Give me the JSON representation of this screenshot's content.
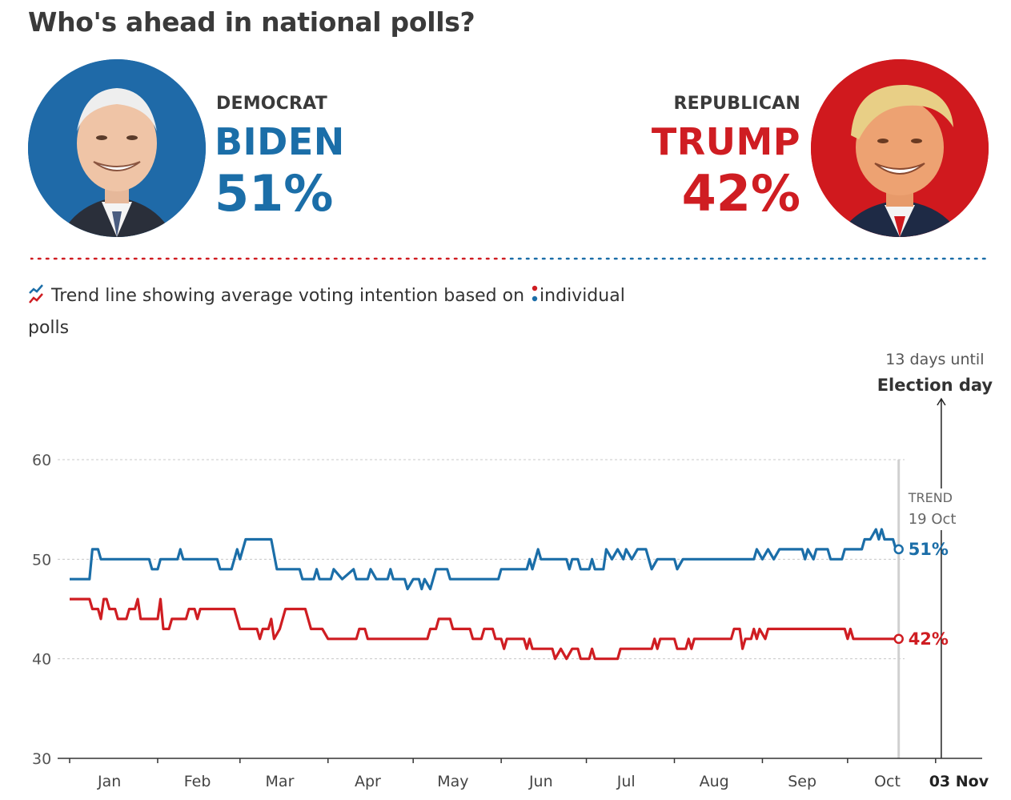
{
  "title": "Who's ahead in national polls?",
  "democrat": {
    "party": "DEMOCRAT",
    "name": "BIDEN",
    "percent": "51%",
    "color": "#1b6ea8",
    "portrait_icon": "biden-portrait"
  },
  "republican": {
    "party": "REPUBLICAN",
    "name": "TRUMP",
    "percent": "42%",
    "color": "#cf1d22",
    "portrait_icon": "trump-portrait"
  },
  "legend": {
    "trend_icon": "trend-line-icon",
    "text_before": "Trend line showing average voting intention based on",
    "poll_icon": "poll-dots-icon",
    "text_after": "individual polls"
  },
  "annotation": {
    "days_text": "13 days until",
    "election_label": "Election day",
    "trend_label": "TREND",
    "trend_date": "19 Oct"
  },
  "chart_data": {
    "type": "line",
    "title": "",
    "xlabel": "",
    "ylabel": "",
    "ylim": [
      30,
      60
    ],
    "yticks": [
      30,
      40,
      50,
      60
    ],
    "grid": true,
    "month_labels": [
      "Jan",
      "Feb",
      "Mar",
      "Apr",
      "May",
      "Jun",
      "Jul",
      "Aug",
      "Sep",
      "Oct"
    ],
    "election_day_label": "03 Nov",
    "x_range": [
      "2020-01-01",
      "2020-11-05"
    ],
    "trend_date": "2020-10-19",
    "election_date": "2020-11-03",
    "series": [
      {
        "name": "BIDEN",
        "color": "#1b6ea8",
        "end_label": "51%",
        "points": [
          [
            "2020-01-01",
            48
          ],
          [
            "2020-01-08",
            48
          ],
          [
            "2020-01-09",
            51
          ],
          [
            "2020-01-11",
            51
          ],
          [
            "2020-01-12",
            50
          ],
          [
            "2020-01-29",
            50
          ],
          [
            "2020-01-30",
            49
          ],
          [
            "2020-02-01",
            49
          ],
          [
            "2020-02-02",
            50
          ],
          [
            "2020-02-08",
            50
          ],
          [
            "2020-02-09",
            51
          ],
          [
            "2020-02-10",
            50
          ],
          [
            "2020-02-22",
            50
          ],
          [
            "2020-02-23",
            49
          ],
          [
            "2020-02-27",
            49
          ],
          [
            "2020-02-29",
            51
          ],
          [
            "2020-03-01",
            50
          ],
          [
            "2020-03-03",
            52
          ],
          [
            "2020-03-12",
            52
          ],
          [
            "2020-03-14",
            49
          ],
          [
            "2020-03-22",
            49
          ],
          [
            "2020-03-23",
            48
          ],
          [
            "2020-03-27",
            48
          ],
          [
            "2020-03-28",
            49
          ],
          [
            "2020-03-29",
            48
          ],
          [
            "2020-04-02",
            48
          ],
          [
            "2020-04-03",
            49
          ],
          [
            "2020-04-06",
            48
          ],
          [
            "2020-04-10",
            49
          ],
          [
            "2020-04-11",
            48
          ],
          [
            "2020-04-15",
            48
          ],
          [
            "2020-04-16",
            49
          ],
          [
            "2020-04-18",
            48
          ],
          [
            "2020-04-22",
            48
          ],
          [
            "2020-04-23",
            49
          ],
          [
            "2020-04-24",
            48
          ],
          [
            "2020-04-28",
            48
          ],
          [
            "2020-04-29",
            47
          ],
          [
            "2020-05-01",
            48
          ],
          [
            "2020-05-03",
            48
          ],
          [
            "2020-05-04",
            47
          ],
          [
            "2020-05-05",
            48
          ],
          [
            "2020-05-07",
            47
          ],
          [
            "2020-05-09",
            49
          ],
          [
            "2020-05-13",
            49
          ],
          [
            "2020-05-14",
            48
          ],
          [
            "2020-05-31",
            48
          ],
          [
            "2020-06-01",
            49
          ],
          [
            "2020-06-10",
            49
          ],
          [
            "2020-06-11",
            50
          ],
          [
            "2020-06-12",
            49
          ],
          [
            "2020-06-13",
            50
          ],
          [
            "2020-06-14",
            51
          ],
          [
            "2020-06-15",
            50
          ],
          [
            "2020-06-24",
            50
          ],
          [
            "2020-06-25",
            49
          ],
          [
            "2020-06-26",
            50
          ],
          [
            "2020-06-28",
            50
          ],
          [
            "2020-06-29",
            49
          ],
          [
            "2020-07-02",
            49
          ],
          [
            "2020-07-03",
            50
          ],
          [
            "2020-07-04",
            49
          ],
          [
            "2020-07-07",
            49
          ],
          [
            "2020-07-08",
            51
          ],
          [
            "2020-07-10",
            50
          ],
          [
            "2020-07-12",
            51
          ],
          [
            "2020-07-14",
            50
          ],
          [
            "2020-07-15",
            51
          ],
          [
            "2020-07-17",
            50
          ],
          [
            "2020-07-19",
            51
          ],
          [
            "2020-07-22",
            51
          ],
          [
            "2020-07-24",
            49
          ],
          [
            "2020-07-26",
            50
          ],
          [
            "2020-08-01",
            50
          ],
          [
            "2020-08-02",
            49
          ],
          [
            "2020-08-04",
            50
          ],
          [
            "2020-08-29",
            50
          ],
          [
            "2020-08-30",
            51
          ],
          [
            "2020-09-01",
            50
          ],
          [
            "2020-09-03",
            51
          ],
          [
            "2020-09-05",
            50
          ],
          [
            "2020-09-07",
            51
          ],
          [
            "2020-09-15",
            51
          ],
          [
            "2020-09-16",
            50
          ],
          [
            "2020-09-17",
            51
          ],
          [
            "2020-09-19",
            50
          ],
          [
            "2020-09-20",
            51
          ],
          [
            "2020-09-24",
            51
          ],
          [
            "2020-09-25",
            50
          ],
          [
            "2020-09-29",
            50
          ],
          [
            "2020-09-30",
            51
          ],
          [
            "2020-10-06",
            51
          ],
          [
            "2020-10-07",
            52
          ],
          [
            "2020-10-09",
            52
          ],
          [
            "2020-10-11",
            53
          ],
          [
            "2020-10-12",
            52
          ],
          [
            "2020-10-13",
            53
          ],
          [
            "2020-10-14",
            52
          ],
          [
            "2020-10-17",
            52
          ],
          [
            "2020-10-18",
            51
          ],
          [
            "2020-10-19",
            51
          ]
        ]
      },
      {
        "name": "TRUMP",
        "color": "#cf1d22",
        "end_label": "42%",
        "points": [
          [
            "2020-01-01",
            46
          ],
          [
            "2020-01-08",
            46
          ],
          [
            "2020-01-09",
            45
          ],
          [
            "2020-01-11",
            45
          ],
          [
            "2020-01-12",
            44
          ],
          [
            "2020-01-13",
            46
          ],
          [
            "2020-01-14",
            46
          ],
          [
            "2020-01-15",
            45
          ],
          [
            "2020-01-17",
            45
          ],
          [
            "2020-01-18",
            44
          ],
          [
            "2020-01-21",
            44
          ],
          [
            "2020-01-22",
            45
          ],
          [
            "2020-01-24",
            45
          ],
          [
            "2020-01-25",
            46
          ],
          [
            "2020-01-26",
            44
          ],
          [
            "2020-02-01",
            44
          ],
          [
            "2020-02-02",
            46
          ],
          [
            "2020-02-03",
            43
          ],
          [
            "2020-02-05",
            43
          ],
          [
            "2020-02-06",
            44
          ],
          [
            "2020-02-11",
            44
          ],
          [
            "2020-02-12",
            45
          ],
          [
            "2020-02-14",
            45
          ],
          [
            "2020-02-15",
            44
          ],
          [
            "2020-02-16",
            45
          ],
          [
            "2020-02-28",
            45
          ],
          [
            "2020-03-01",
            43
          ],
          [
            "2020-03-07",
            43
          ],
          [
            "2020-03-08",
            42
          ],
          [
            "2020-03-09",
            43
          ],
          [
            "2020-03-11",
            43
          ],
          [
            "2020-03-12",
            44
          ],
          [
            "2020-03-13",
            42
          ],
          [
            "2020-03-15",
            43
          ],
          [
            "2020-03-17",
            45
          ],
          [
            "2020-03-24",
            45
          ],
          [
            "2020-03-26",
            43
          ],
          [
            "2020-03-30",
            43
          ],
          [
            "2020-04-01",
            42
          ],
          [
            "2020-04-11",
            42
          ],
          [
            "2020-04-12",
            43
          ],
          [
            "2020-04-14",
            43
          ],
          [
            "2020-04-15",
            42
          ],
          [
            "2020-05-06",
            42
          ],
          [
            "2020-05-07",
            43
          ],
          [
            "2020-05-09",
            43
          ],
          [
            "2020-05-10",
            44
          ],
          [
            "2020-05-14",
            44
          ],
          [
            "2020-05-15",
            43
          ],
          [
            "2020-05-21",
            43
          ],
          [
            "2020-05-22",
            42
          ],
          [
            "2020-05-25",
            42
          ],
          [
            "2020-05-26",
            43
          ],
          [
            "2020-05-29",
            43
          ],
          [
            "2020-05-30",
            42
          ],
          [
            "2020-06-01",
            42
          ],
          [
            "2020-06-02",
            41
          ],
          [
            "2020-06-03",
            42
          ],
          [
            "2020-06-09",
            42
          ],
          [
            "2020-06-10",
            41
          ],
          [
            "2020-06-11",
            42
          ],
          [
            "2020-06-12",
            41
          ],
          [
            "2020-06-19",
            41
          ],
          [
            "2020-06-20",
            40
          ],
          [
            "2020-06-22",
            41
          ],
          [
            "2020-06-24",
            40
          ],
          [
            "2020-06-26",
            41
          ],
          [
            "2020-06-28",
            41
          ],
          [
            "2020-06-29",
            40
          ],
          [
            "2020-07-02",
            40
          ],
          [
            "2020-07-03",
            41
          ],
          [
            "2020-07-04",
            40
          ],
          [
            "2020-07-12",
            40
          ],
          [
            "2020-07-13",
            41
          ],
          [
            "2020-07-24",
            41
          ],
          [
            "2020-07-25",
            42
          ],
          [
            "2020-07-26",
            41
          ],
          [
            "2020-07-27",
            42
          ],
          [
            "2020-08-01",
            42
          ],
          [
            "2020-08-02",
            41
          ],
          [
            "2020-08-05",
            41
          ],
          [
            "2020-08-06",
            42
          ],
          [
            "2020-08-07",
            41
          ],
          [
            "2020-08-08",
            42
          ],
          [
            "2020-08-21",
            42
          ],
          [
            "2020-08-22",
            43
          ],
          [
            "2020-08-24",
            43
          ],
          [
            "2020-08-25",
            41
          ],
          [
            "2020-08-26",
            42
          ],
          [
            "2020-08-28",
            42
          ],
          [
            "2020-08-29",
            43
          ],
          [
            "2020-08-30",
            42
          ],
          [
            "2020-08-31",
            43
          ],
          [
            "2020-09-02",
            42
          ],
          [
            "2020-09-03",
            43
          ],
          [
            "2020-09-30",
            43
          ],
          [
            "2020-10-01",
            42
          ],
          [
            "2020-10-02",
            43
          ],
          [
            "2020-10-03",
            42
          ],
          [
            "2020-10-19",
            42
          ]
        ]
      }
    ]
  }
}
